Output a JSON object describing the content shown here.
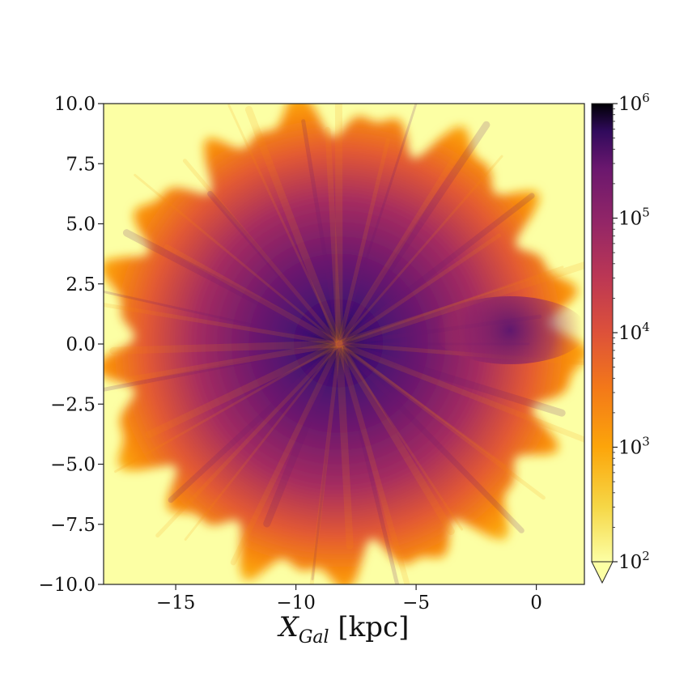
{
  "chart_data": {
    "type": "heatmap",
    "title": "",
    "xlabel": {
      "main": "X",
      "sub": "Gal",
      "unit": " [kpc]"
    },
    "ylabel": "",
    "xlim": [
      -18,
      2
    ],
    "ylim": [
      -10,
      10
    ],
    "x_ticks": [
      {
        "value": -15,
        "label": "−15"
      },
      {
        "value": -10,
        "label": "−10"
      },
      {
        "value": -5,
        "label": "−5"
      },
      {
        "value": 0,
        "label": "0"
      }
    ],
    "y_ticks": [
      {
        "value": 10,
        "label": "10.0"
      },
      {
        "value": 7.5,
        "label": "7.5"
      },
      {
        "value": 5,
        "label": "5.0"
      },
      {
        "value": 2.5,
        "label": "2.5"
      },
      {
        "value": 0,
        "label": "0.0"
      },
      {
        "value": -2.5,
        "label": "−2.5"
      },
      {
        "value": -5,
        "label": "−5.0"
      },
      {
        "value": -7.5,
        "label": "−7.5"
      },
      {
        "value": -10,
        "label": "−10.0"
      }
    ],
    "colorbar": {
      "scale": "log",
      "range": [
        100,
        1000000
      ],
      "extend": "min",
      "colormap": "inferno_r",
      "ticks": [
        {
          "value": 1000000,
          "base": "10",
          "exp": "6"
        },
        {
          "value": 100000,
          "base": "10",
          "exp": "5"
        },
        {
          "value": 10000,
          "base": "10",
          "exp": "4"
        },
        {
          "value": 1000,
          "base": "10",
          "exp": "3"
        },
        {
          "value": 100,
          "base": "10",
          "exp": "2"
        }
      ]
    },
    "density_peak": {
      "x": -8.2,
      "y": 0.0,
      "value": 800000
    },
    "secondary_feature": {
      "x": -1.5,
      "y": 0.5,
      "value": 30000
    },
    "extent_radius_kpc": 10.5,
    "background_color": "#fcffa4"
  }
}
